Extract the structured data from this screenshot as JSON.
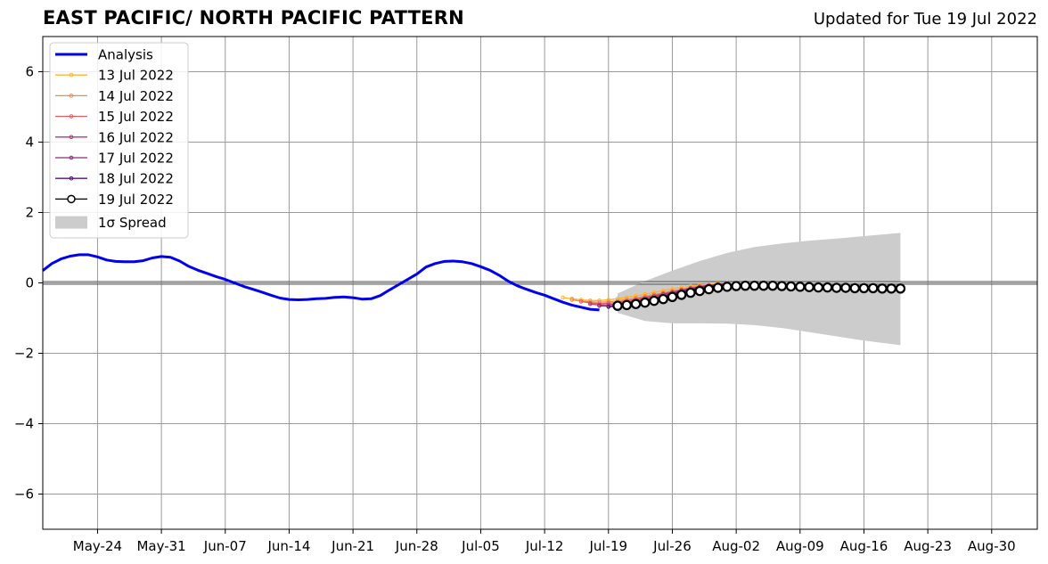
{
  "header": {
    "title": "EAST PACIFIC/ NORTH PACIFIC PATTERN",
    "updated": "Updated for Tue 19 Jul 2022"
  },
  "chart_data": {
    "type": "line",
    "ylim": [
      -7,
      7
    ],
    "xlim": [
      "2022-05-18",
      "2022-09-04"
    ],
    "yticks": [
      6,
      4,
      2,
      0,
      -2,
      -4,
      -6
    ],
    "ytick_labels": [
      "6",
      "4",
      "2",
      "0",
      "−2",
      "−4",
      "−6"
    ],
    "xtick_dates": [
      "2022-05-24",
      "2022-05-31",
      "2022-06-07",
      "2022-06-14",
      "2022-06-21",
      "2022-06-28",
      "2022-07-05",
      "2022-07-12",
      "2022-07-19",
      "2022-07-26",
      "2022-08-02",
      "2022-08-09",
      "2022-08-16",
      "2022-08-23",
      "2022-08-30"
    ],
    "xtick_labels": [
      "May-24",
      "May-31",
      "Jun-07",
      "Jun-14",
      "Jun-21",
      "Jun-28",
      "Jul-05",
      "Jul-12",
      "Jul-19",
      "Jul-26",
      "Aug-02",
      "Aug-09",
      "Aug-16",
      "Aug-23",
      "Aug-30"
    ],
    "grid": true,
    "legend_location": "upper-left",
    "series": [
      {
        "name": "Analysis",
        "color": "#0000ee",
        "x": [
          "2022-05-18",
          "2022-05-19",
          "2022-05-20",
          "2022-05-21",
          "2022-05-22",
          "2022-05-23",
          "2022-05-24",
          "2022-05-25",
          "2022-05-26",
          "2022-05-27",
          "2022-05-28",
          "2022-05-29",
          "2022-05-30",
          "2022-05-31",
          "2022-06-01",
          "2022-06-02",
          "2022-06-03",
          "2022-06-04",
          "2022-06-05",
          "2022-06-06",
          "2022-06-07",
          "2022-06-08",
          "2022-06-09",
          "2022-06-10",
          "2022-06-11",
          "2022-06-12",
          "2022-06-13",
          "2022-06-14",
          "2022-06-15",
          "2022-06-16",
          "2022-06-17",
          "2022-06-18",
          "2022-06-19",
          "2022-06-20",
          "2022-06-21",
          "2022-06-22",
          "2022-06-23",
          "2022-06-24",
          "2022-06-25",
          "2022-06-26",
          "2022-06-27",
          "2022-06-28",
          "2022-06-29",
          "2022-06-30",
          "2022-07-01",
          "2022-07-02",
          "2022-07-03",
          "2022-07-04",
          "2022-07-05",
          "2022-07-06",
          "2022-07-07",
          "2022-07-08",
          "2022-07-09",
          "2022-07-10",
          "2022-07-11",
          "2022-07-12",
          "2022-07-13",
          "2022-07-14",
          "2022-07-15",
          "2022-07-16",
          "2022-07-17",
          "2022-07-18"
        ],
        "values": [
          0.35,
          0.55,
          0.68,
          0.76,
          0.8,
          0.8,
          0.74,
          0.65,
          0.61,
          0.6,
          0.6,
          0.63,
          0.71,
          0.75,
          0.73,
          0.62,
          0.47,
          0.36,
          0.27,
          0.18,
          0.1,
          0.0,
          -0.1,
          -0.18,
          -0.26,
          -0.35,
          -0.43,
          -0.47,
          -0.48,
          -0.47,
          -0.45,
          -0.44,
          -0.41,
          -0.4,
          -0.42,
          -0.46,
          -0.45,
          -0.36,
          -0.2,
          -0.05,
          0.1,
          0.25,
          0.45,
          0.55,
          0.61,
          0.62,
          0.6,
          0.55,
          0.46,
          0.36,
          0.22,
          0.05,
          -0.08,
          -0.18,
          -0.27,
          -0.35,
          -0.45,
          -0.55,
          -0.63,
          -0.69,
          -0.75,
          -0.77
        ]
      },
      {
        "name": "13 Jul 2022",
        "color": "#fdb42f",
        "x": [
          "2022-07-14",
          "2022-07-15",
          "2022-07-16",
          "2022-07-17",
          "2022-07-18",
          "2022-07-19",
          "2022-07-20",
          "2022-07-21",
          "2022-07-22",
          "2022-07-23",
          "2022-07-24",
          "2022-07-25",
          "2022-07-26",
          "2022-07-27",
          "2022-07-28",
          "2022-07-29",
          "2022-07-30",
          "2022-07-31",
          "2022-08-01"
        ],
        "values": [
          -0.42,
          -0.45,
          -0.48,
          -0.5,
          -0.5,
          -0.48,
          -0.45,
          -0.41,
          -0.37,
          -0.32,
          -0.27,
          -0.22,
          -0.17,
          -0.13,
          -0.09,
          -0.06,
          -0.04,
          -0.02,
          -0.01
        ]
      },
      {
        "name": "14 Jul 2022",
        "color": "#f58c46",
        "x": [
          "2022-07-15",
          "2022-07-16",
          "2022-07-17",
          "2022-07-18",
          "2022-07-19",
          "2022-07-20",
          "2022-07-21",
          "2022-07-22",
          "2022-07-23",
          "2022-07-24",
          "2022-07-25",
          "2022-07-26",
          "2022-07-27",
          "2022-07-28",
          "2022-07-29",
          "2022-07-30",
          "2022-07-31",
          "2022-08-01"
        ],
        "values": [
          -0.48,
          -0.52,
          -0.54,
          -0.55,
          -0.54,
          -0.51,
          -0.47,
          -0.43,
          -0.38,
          -0.33,
          -0.28,
          -0.23,
          -0.18,
          -0.13,
          -0.09,
          -0.06,
          -0.04,
          -0.02
        ]
      },
      {
        "name": "15 Jul 2022",
        "color": "#de5f65",
        "x": [
          "2022-07-16",
          "2022-07-17",
          "2022-07-18",
          "2022-07-19",
          "2022-07-20",
          "2022-07-21",
          "2022-07-22",
          "2022-07-23",
          "2022-07-24",
          "2022-07-25",
          "2022-07-26",
          "2022-07-27",
          "2022-07-28",
          "2022-07-29",
          "2022-07-30",
          "2022-07-31",
          "2022-08-01"
        ],
        "values": [
          -0.53,
          -0.57,
          -0.59,
          -0.58,
          -0.55,
          -0.51,
          -0.46,
          -0.41,
          -0.36,
          -0.3,
          -0.25,
          -0.2,
          -0.15,
          -0.1,
          -0.07,
          -0.04,
          -0.02
        ]
      },
      {
        "name": "16 Jul 2022",
        "color": "#b73779",
        "x": [
          "2022-07-17",
          "2022-07-18",
          "2022-07-19",
          "2022-07-20",
          "2022-07-21",
          "2022-07-22",
          "2022-07-23",
          "2022-07-24",
          "2022-07-25",
          "2022-07-26",
          "2022-07-27",
          "2022-07-28",
          "2022-07-29",
          "2022-07-30",
          "2022-07-31",
          "2022-08-01"
        ],
        "values": [
          -0.6,
          -0.63,
          -0.62,
          -0.59,
          -0.55,
          -0.5,
          -0.44,
          -0.38,
          -0.32,
          -0.27,
          -0.21,
          -0.16,
          -0.11,
          -0.07,
          -0.04,
          -0.02
        ]
      },
      {
        "name": "17 Jul 2022",
        "color": "#8c2981",
        "x": [
          "2022-07-18",
          "2022-07-19",
          "2022-07-20",
          "2022-07-21",
          "2022-07-22",
          "2022-07-23",
          "2022-07-24",
          "2022-07-25",
          "2022-07-26",
          "2022-07-27",
          "2022-07-28",
          "2022-07-29",
          "2022-07-30",
          "2022-07-31",
          "2022-08-01"
        ],
        "values": [
          -0.65,
          -0.66,
          -0.63,
          -0.59,
          -0.54,
          -0.48,
          -0.42,
          -0.36,
          -0.3,
          -0.24,
          -0.18,
          -0.13,
          -0.09,
          -0.05,
          -0.03
        ]
      },
      {
        "name": "18 Jul 2022",
        "color": "#51127c",
        "x": [
          "2022-07-19",
          "2022-07-20",
          "2022-07-21",
          "2022-07-22",
          "2022-07-23",
          "2022-07-24",
          "2022-07-25",
          "2022-07-26",
          "2022-07-27",
          "2022-07-28",
          "2022-07-29",
          "2022-07-30",
          "2022-07-31",
          "2022-08-01"
        ],
        "values": [
          -0.68,
          -0.66,
          -0.62,
          -0.57,
          -0.51,
          -0.45,
          -0.38,
          -0.32,
          -0.26,
          -0.2,
          -0.15,
          -0.1,
          -0.06,
          -0.03
        ]
      },
      {
        "name": "19 Jul 2022",
        "color": "#000000",
        "markers": "open-circle",
        "x": [
          "2022-07-20",
          "2022-07-21",
          "2022-07-22",
          "2022-07-23",
          "2022-07-24",
          "2022-07-25",
          "2022-07-26",
          "2022-07-27",
          "2022-07-28",
          "2022-07-29",
          "2022-07-30",
          "2022-07-31",
          "2022-08-01",
          "2022-08-02",
          "2022-08-03",
          "2022-08-04",
          "2022-08-05",
          "2022-08-06",
          "2022-08-07",
          "2022-08-08",
          "2022-08-09",
          "2022-08-10",
          "2022-08-11",
          "2022-08-12",
          "2022-08-13",
          "2022-08-14",
          "2022-08-15",
          "2022-08-16",
          "2022-08-17",
          "2022-08-18",
          "2022-08-19",
          "2022-08-20"
        ],
        "values": [
          -0.65,
          -0.63,
          -0.6,
          -0.56,
          -0.51,
          -0.46,
          -0.4,
          -0.34,
          -0.28,
          -0.23,
          -0.18,
          -0.14,
          -0.11,
          -0.09,
          -0.08,
          -0.08,
          -0.08,
          -0.08,
          -0.09,
          -0.1,
          -0.11,
          -0.12,
          -0.13,
          -0.13,
          -0.14,
          -0.14,
          -0.15,
          -0.15,
          -0.15,
          -0.16,
          -0.16,
          -0.16
        ]
      }
    ],
    "spread": {
      "name": "1σ Spread",
      "color": "#cccccc",
      "x": [
        "2022-07-20",
        "2022-07-23",
        "2022-07-26",
        "2022-07-29",
        "2022-08-01",
        "2022-08-04",
        "2022-08-07",
        "2022-08-10",
        "2022-08-13",
        "2022-08-16",
        "2022-08-20"
      ],
      "upper": [
        -0.3,
        0.05,
        0.35,
        0.62,
        0.85,
        1.02,
        1.12,
        1.2,
        1.26,
        1.33,
        1.42
      ],
      "lower": [
        -0.85,
        -1.08,
        -1.15,
        -1.15,
        -1.16,
        -1.2,
        -1.28,
        -1.4,
        -1.52,
        -1.64,
        -1.77
      ]
    }
  }
}
